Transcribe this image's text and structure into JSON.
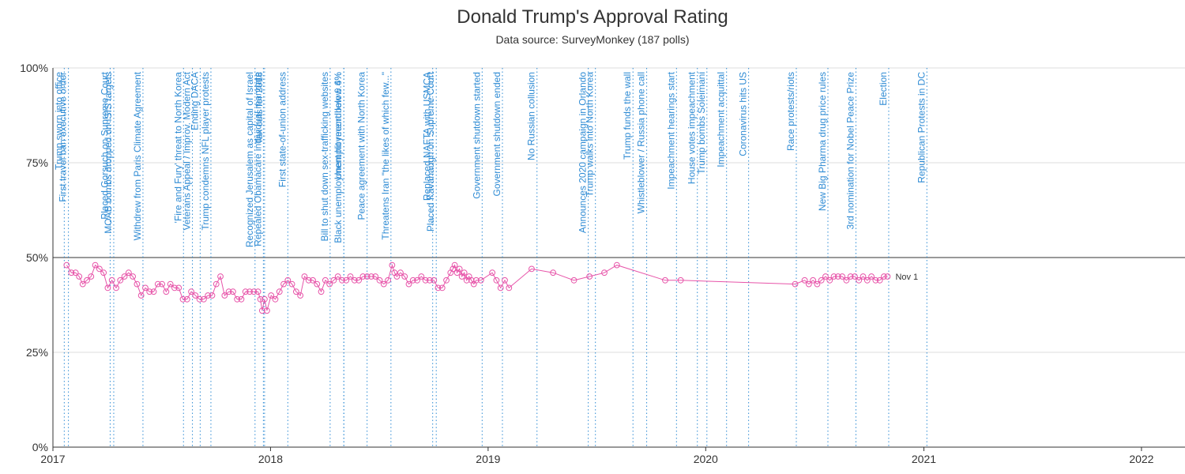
{
  "chart_data": {
    "type": "line",
    "title": "Donald Trump's Approval Rating",
    "subtitle": "Data source: SurveyMonkey (187 polls)",
    "xlabel": "",
    "ylabel": "",
    "xlim": [
      "2017-01-01",
      "2022-03-15"
    ],
    "ylim": [
      0,
      100
    ],
    "grid": true,
    "reference_line": 50,
    "colors": {
      "series": "#e754a9",
      "events": "#2e8bd4",
      "grid": "#dddddd",
      "reference": "#333333"
    },
    "x_tick_labels": [
      {
        "date": "2017-01-01",
        "label": "2017"
      },
      {
        "date": "2018-01-01",
        "label": "2018"
      },
      {
        "date": "2019-01-01",
        "label": "2019"
      },
      {
        "date": "2020-01-01",
        "label": "2020"
      },
      {
        "date": "2021-01-01",
        "label": "2021"
      },
      {
        "date": "2022-01-01",
        "label": "2022"
      }
    ],
    "y_tick_labels": [
      {
        "value": 0,
        "label": "0%"
      },
      {
        "value": 25,
        "label": "25%"
      },
      {
        "value": 50,
        "label": "50%"
      },
      {
        "value": 75,
        "label": "75%"
      },
      {
        "value": 100,
        "label": "100%"
      }
    ],
    "end_label": "Nov 1",
    "events": [
      {
        "date": "2017-01-20",
        "label": "Trump sworn into office"
      },
      {
        "date": "2017-01-27",
        "label": "First travel ban executive order"
      },
      {
        "date": "2017-04-07",
        "label": "Placed Gorsuch on Supreme Court"
      },
      {
        "date": "2017-04-13",
        "label": "MOAB bombs dropped on ISIS targets"
      },
      {
        "date": "2017-06-01",
        "label": "Withdrew from Paris Climate Agreement"
      },
      {
        "date": "2017-08-08",
        "label": "'Fire and Fury' threat to North Korea"
      },
      {
        "date": "2017-08-23",
        "label": "Veterans Appeal / Improv. Modern Act"
      },
      {
        "date": "2017-09-05",
        "label": "Ending DACA"
      },
      {
        "date": "2017-09-23",
        "label": "Trump condemns NFL player protests"
      },
      {
        "date": "2017-12-06",
        "label": "Recognized Jerusalem as capital of Israel"
      },
      {
        "date": "2017-12-20",
        "label": "Repealed Obamacare individual mandate"
      },
      {
        "date": "2017-12-22",
        "label": "Tax cuts for 2018"
      },
      {
        "date": "2018-01-30",
        "label": "First state-of-union address"
      },
      {
        "date": "2018-04-11",
        "label": "Bill to shut down sex-trafficking websites"
      },
      {
        "date": "2018-05-04",
        "label": "Black unemployment hit record low 6.6%"
      },
      {
        "date": "2018-05-04",
        "label": "Unemployment below 4%"
      },
      {
        "date": "2018-06-12",
        "label": "Peace agreement with North Korea"
      },
      {
        "date": "2018-07-22",
        "label": "Threatens Iran \"the likes of which few...\""
      },
      {
        "date": "2018-09-30",
        "label": "Replaced NAFTA with USMCA"
      },
      {
        "date": "2018-10-06",
        "label": "Placed Kavanaugh on Supreme Court"
      },
      {
        "date": "2018-12-22",
        "label": "Government shutdown started"
      },
      {
        "date": "2019-01-25",
        "label": "Government shutdown ended"
      },
      {
        "date": "2019-03-24",
        "label": "No Russian collusion"
      },
      {
        "date": "2019-06-18",
        "label": "Announces 2020 campaign in Orlando"
      },
      {
        "date": "2019-06-30",
        "label": "Trump walks into North Korea"
      },
      {
        "date": "2019-09-01",
        "label": "Trump funds the wall"
      },
      {
        "date": "2019-09-24",
        "label": "Whistleblower / Russia phone call"
      },
      {
        "date": "2019-11-13",
        "label": "Impeachment hearings start"
      },
      {
        "date": "2019-12-18",
        "label": "House votes impeachment"
      },
      {
        "date": "2020-01-03",
        "label": "Trump bombs Soleimani"
      },
      {
        "date": "2020-02-05",
        "label": "Impeachment acquittal"
      },
      {
        "date": "2020-03-13",
        "label": "Coronavirus hits US"
      },
      {
        "date": "2020-06-01",
        "label": "Race protests/riots"
      },
      {
        "date": "2020-07-24",
        "label": "New Big Pharma drug price rules"
      },
      {
        "date": "2020-09-09",
        "label": "3rd nomination for Nobel Peace Prize"
      },
      {
        "date": "2020-11-03",
        "label": "Election"
      },
      {
        "date": "2021-01-06",
        "label": "Republican Protests in DC"
      }
    ],
    "series": [
      {
        "values": [
          [
            "2017-01-24",
            48
          ],
          [
            "2017-02-01",
            46
          ],
          [
            "2017-02-08",
            46
          ],
          [
            "2017-02-14",
            45
          ],
          [
            "2017-02-20",
            43
          ],
          [
            "2017-02-27",
            44
          ],
          [
            "2017-03-06",
            45
          ],
          [
            "2017-03-13",
            48
          ],
          [
            "2017-03-20",
            47
          ],
          [
            "2017-03-27",
            46
          ],
          [
            "2017-04-03",
            42
          ],
          [
            "2017-04-10",
            44
          ],
          [
            "2017-04-17",
            42
          ],
          [
            "2017-04-24",
            44
          ],
          [
            "2017-05-01",
            45
          ],
          [
            "2017-05-08",
            46
          ],
          [
            "2017-05-15",
            45
          ],
          [
            "2017-05-22",
            43
          ],
          [
            "2017-05-29",
            40
          ],
          [
            "2017-06-05",
            42
          ],
          [
            "2017-06-12",
            41
          ],
          [
            "2017-06-19",
            41
          ],
          [
            "2017-06-26",
            43
          ],
          [
            "2017-07-03",
            43
          ],
          [
            "2017-07-10",
            41
          ],
          [
            "2017-07-17",
            43
          ],
          [
            "2017-07-24",
            42
          ],
          [
            "2017-07-31",
            42
          ],
          [
            "2017-08-07",
            39
          ],
          [
            "2017-08-14",
            39
          ],
          [
            "2017-08-21",
            41
          ],
          [
            "2017-08-28",
            40
          ],
          [
            "2017-09-04",
            39
          ],
          [
            "2017-09-11",
            39
          ],
          [
            "2017-09-18",
            40
          ],
          [
            "2017-09-25",
            40
          ],
          [
            "2017-10-02",
            43
          ],
          [
            "2017-10-09",
            45
          ],
          [
            "2017-10-16",
            40
          ],
          [
            "2017-10-23",
            41
          ],
          [
            "2017-10-30",
            41
          ],
          [
            "2017-11-06",
            39
          ],
          [
            "2017-11-13",
            39
          ],
          [
            "2017-11-20",
            41
          ],
          [
            "2017-11-27",
            41
          ],
          [
            "2017-12-04",
            41
          ],
          [
            "2017-12-11",
            41
          ],
          [
            "2017-12-15",
            39
          ],
          [
            "2017-12-18",
            36
          ],
          [
            "2017-12-22",
            39
          ],
          [
            "2017-12-26",
            36
          ],
          [
            "2018-01-02",
            40
          ],
          [
            "2018-01-09",
            39
          ],
          [
            "2018-01-16",
            41
          ],
          [
            "2018-01-23",
            43
          ],
          [
            "2018-01-30",
            44
          ],
          [
            "2018-02-06",
            43
          ],
          [
            "2018-02-13",
            41
          ],
          [
            "2018-02-20",
            40
          ],
          [
            "2018-02-27",
            45
          ],
          [
            "2018-03-06",
            44
          ],
          [
            "2018-03-13",
            44
          ],
          [
            "2018-03-20",
            43
          ],
          [
            "2018-03-27",
            41
          ],
          [
            "2018-04-03",
            44
          ],
          [
            "2018-04-10",
            43
          ],
          [
            "2018-04-17",
            44
          ],
          [
            "2018-04-24",
            45
          ],
          [
            "2018-05-01",
            44
          ],
          [
            "2018-05-08",
            44
          ],
          [
            "2018-05-15",
            45
          ],
          [
            "2018-05-22",
            44
          ],
          [
            "2018-05-29",
            44
          ],
          [
            "2018-06-05",
            45
          ],
          [
            "2018-06-12",
            45
          ],
          [
            "2018-06-19",
            45
          ],
          [
            "2018-06-26",
            45
          ],
          [
            "2018-07-03",
            44
          ],
          [
            "2018-07-10",
            43
          ],
          [
            "2018-07-17",
            44
          ],
          [
            "2018-07-24",
            48
          ],
          [
            "2018-07-28",
            46
          ],
          [
            "2018-08-01",
            45
          ],
          [
            "2018-08-07",
            46
          ],
          [
            "2018-08-14",
            45
          ],
          [
            "2018-08-21",
            43
          ],
          [
            "2018-08-28",
            44
          ],
          [
            "2018-09-04",
            44
          ],
          [
            "2018-09-11",
            45
          ],
          [
            "2018-09-18",
            44
          ],
          [
            "2018-09-25",
            44
          ],
          [
            "2018-10-02",
            44
          ],
          [
            "2018-10-09",
            42
          ],
          [
            "2018-10-16",
            42
          ],
          [
            "2018-10-23",
            44
          ],
          [
            "2018-10-30",
            46
          ],
          [
            "2018-11-03",
            47
          ],
          [
            "2018-11-06",
            48
          ],
          [
            "2018-11-10",
            46
          ],
          [
            "2018-11-14",
            47
          ],
          [
            "2018-11-18",
            45
          ],
          [
            "2018-11-22",
            46
          ],
          [
            "2018-11-26",
            44
          ],
          [
            "2018-11-30",
            45
          ],
          [
            "2018-12-04",
            44
          ],
          [
            "2018-12-08",
            43
          ],
          [
            "2018-12-12",
            44
          ],
          [
            "2018-12-20",
            44
          ],
          [
            "2019-01-08",
            46
          ],
          [
            "2019-01-15",
            44
          ],
          [
            "2019-01-22",
            42
          ],
          [
            "2019-01-29",
            44
          ],
          [
            "2019-02-05",
            42
          ],
          [
            "2019-03-15",
            47
          ],
          [
            "2019-04-20",
            46
          ],
          [
            "2019-05-25",
            44
          ],
          [
            "2019-06-20",
            45
          ],
          [
            "2019-07-15",
            46
          ],
          [
            "2019-08-05",
            48
          ],
          [
            "2019-10-25",
            44
          ],
          [
            "2019-11-20",
            44
          ],
          [
            "2020-05-30",
            43
          ],
          [
            "2020-06-15",
            44
          ],
          [
            "2020-06-22",
            43
          ],
          [
            "2020-06-29",
            44
          ],
          [
            "2020-07-06",
            43
          ],
          [
            "2020-07-13",
            44
          ],
          [
            "2020-07-20",
            45
          ],
          [
            "2020-07-27",
            44
          ],
          [
            "2020-08-03",
            45
          ],
          [
            "2020-08-10",
            45
          ],
          [
            "2020-08-17",
            45
          ],
          [
            "2020-08-24",
            44
          ],
          [
            "2020-08-31",
            45
          ],
          [
            "2020-09-07",
            45
          ],
          [
            "2020-09-14",
            44
          ],
          [
            "2020-09-21",
            45
          ],
          [
            "2020-09-28",
            44
          ],
          [
            "2020-10-05",
            45
          ],
          [
            "2020-10-12",
            44
          ],
          [
            "2020-10-19",
            44
          ],
          [
            "2020-10-26",
            45
          ],
          [
            "2020-11-01",
            45
          ]
        ]
      }
    ]
  }
}
